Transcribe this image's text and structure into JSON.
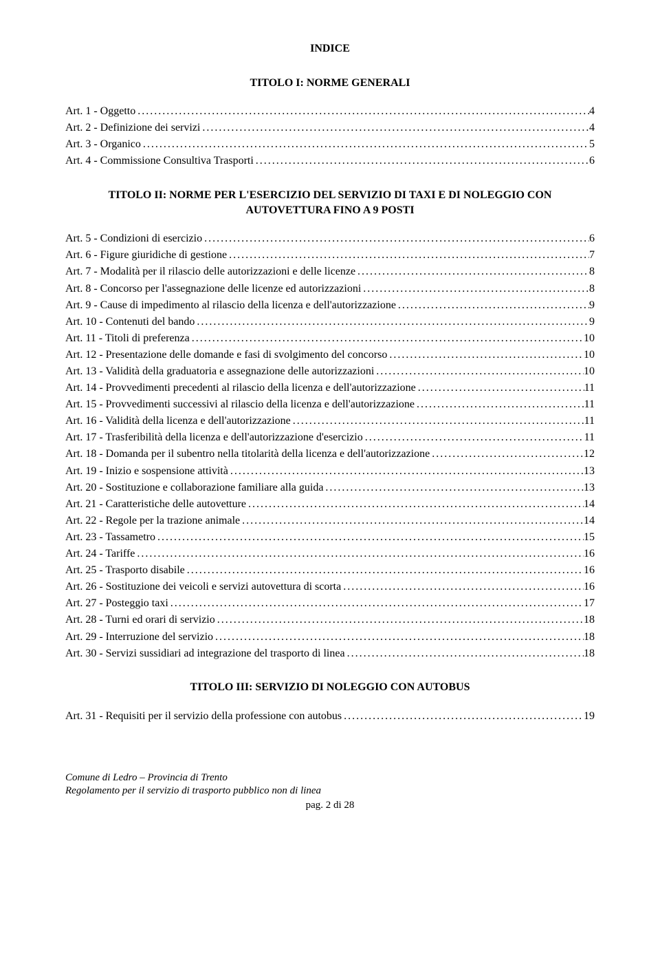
{
  "title": "INDICE",
  "sections": [
    {
      "heading": "TITOLO I: NORME GENERALI",
      "items": [
        {
          "label": "Art. 1 - Oggetto",
          "page": "4"
        },
        {
          "label": "Art. 2 - Definizione dei servizi",
          "page": "4"
        },
        {
          "label": "Art. 3 - Organico",
          "page": "5"
        },
        {
          "label": "Art. 4 - Commissione Consultiva Trasporti",
          "page": "6"
        }
      ]
    },
    {
      "heading": "TITOLO II: NORME PER L'ESERCIZIO DEL SERVIZIO DI TAXI E DI NOLEGGIO CON AUTOVETTURA FINO A 9 POSTI",
      "items": [
        {
          "label": "Art. 5 - Condizioni di esercizio",
          "page": "6"
        },
        {
          "label": "Art. 6 - Figure giuridiche di gestione",
          "page": "7"
        },
        {
          "label": "Art. 7 - Modalità per il rilascio delle autorizzazioni e delle licenze",
          "page": "8"
        },
        {
          "label": "Art. 8 - Concorso per l'assegnazione delle licenze ed autorizzazioni",
          "page": "8"
        },
        {
          "label": "Art. 9 - Cause di impedimento al rilascio della licenza e dell'autorizzazione",
          "page": "9"
        },
        {
          "label": "Art. 10 - Contenuti del bando",
          "page": "9"
        },
        {
          "label": "Art. 11 - Titoli di preferenza",
          "page": "10"
        },
        {
          "label": "Art. 12 - Presentazione delle domande e fasi di svolgimento del concorso",
          "page": "10"
        },
        {
          "label": "Art. 13 - Validità della graduatoria e assegnazione delle autorizzazioni",
          "page": "10"
        },
        {
          "label": "Art. 14 - Provvedimenti precedenti al rilascio della licenza e dell'autorizzazione",
          "page": "11"
        },
        {
          "label": "Art. 15 - Provvedimenti successivi al rilascio della licenza e dell'autorizzazione",
          "page": "11"
        },
        {
          "label": "Art. 16 - Validità della licenza e dell'autorizzazione",
          "page": "11"
        },
        {
          "label": "Art. 17 - Trasferibilità della licenza e dell'autorizzazione d'esercizio",
          "page": "11"
        },
        {
          "label": "Art. 18 - Domanda per il subentro nella titolarità della licenza e dell'autorizzazione",
          "page": "12"
        },
        {
          "label": "Art. 19 - Inizio e sospensione attività",
          "page": "13"
        },
        {
          "label": "Art. 20 - Sostituzione e collaborazione familiare alla guida",
          "page": "13"
        },
        {
          "label": "Art. 21 - Caratteristiche delle autovetture",
          "page": "14"
        },
        {
          "label": "Art. 22 - Regole per la trazione animale",
          "page": "14"
        },
        {
          "label": "Art. 23 - Tassametro",
          "page": "15"
        },
        {
          "label": "Art. 24 - Tariffe",
          "page": "16"
        },
        {
          "label": "Art. 25 - Trasporto disabile",
          "page": "16"
        },
        {
          "label": "Art. 26 - Sostituzione dei veicoli e servizi autovettura di scorta",
          "page": "16"
        },
        {
          "label": "Art. 27 - Posteggio taxi",
          "page": "17"
        },
        {
          "label": "Art. 28 - Turni ed orari di servizio",
          "page": "18"
        },
        {
          "label": "Art. 29 - Interruzione del servizio",
          "page": "18"
        },
        {
          "label": "Art. 30 - Servizi sussidiari ad integrazione del trasporto di linea",
          "page": "18"
        }
      ]
    },
    {
      "heading": "TITOLO III: SERVIZIO DI NOLEGGIO CON AUTOBUS",
      "items": [
        {
          "label": "Art. 31 - Requisiti per il servizio della professione con autobus",
          "page": "19"
        }
      ]
    }
  ],
  "footer": {
    "line1": "Comune di Ledro – Provincia di Trento",
    "line2": "Regolamento per il servizio di trasporto pubblico non di linea",
    "pageNum": "pag. 2 di 28"
  }
}
